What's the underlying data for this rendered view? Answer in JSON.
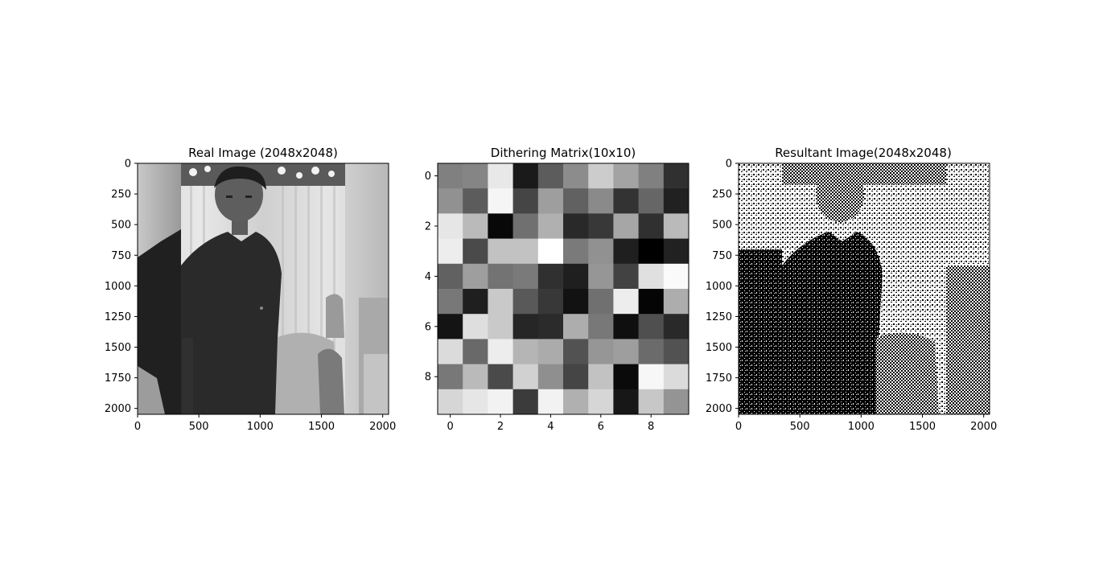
{
  "chart_data": [
    {
      "type": "heatmap",
      "title": "Real Image (2048x2048)",
      "colormap": "gray",
      "xlim": [
        0,
        2048
      ],
      "ylim": [
        2048,
        0
      ],
      "xticks": [
        0,
        500,
        1000,
        1500,
        2000
      ],
      "yticks": [
        0,
        250,
        500,
        750,
        1000,
        1250,
        1500,
        1750,
        2000
      ],
      "content": "grayscale photograph"
    },
    {
      "type": "heatmap",
      "title": "Dithering Matrix(10x10)",
      "colormap": "gray",
      "xlim": [
        -0.5,
        9.5
      ],
      "ylim": [
        9.5,
        -0.5
      ],
      "xticks": [
        0,
        2,
        4,
        6,
        8
      ],
      "yticks": [
        0,
        2,
        4,
        6,
        8
      ],
      "values": [
        [
          0.5,
          0.52,
          0.91,
          0.1,
          0.36,
          0.55,
          0.8,
          0.64,
          0.5,
          0.19
        ],
        [
          0.57,
          0.36,
          0.96,
          0.27,
          0.62,
          0.38,
          0.54,
          0.2,
          0.4,
          0.13
        ],
        [
          0.9,
          0.73,
          0.03,
          0.44,
          0.69,
          0.16,
          0.22,
          0.65,
          0.19,
          0.73
        ],
        [
          0.93,
          0.29,
          0.76,
          0.76,
          1.0,
          0.48,
          0.57,
          0.12,
          0.0,
          0.13
        ],
        [
          0.38,
          0.62,
          0.45,
          0.48,
          0.19,
          0.12,
          0.59,
          0.26,
          0.88,
          0.98
        ],
        [
          0.47,
          0.12,
          0.79,
          0.35,
          0.22,
          0.07,
          0.44,
          0.93,
          0.02,
          0.68
        ],
        [
          0.08,
          0.87,
          0.79,
          0.15,
          0.17,
          0.68,
          0.47,
          0.06,
          0.31,
          0.16
        ],
        [
          0.86,
          0.41,
          0.93,
          0.71,
          0.67,
          0.32,
          0.59,
          0.62,
          0.42,
          0.32
        ],
        [
          0.47,
          0.73,
          0.29,
          0.82,
          0.56,
          0.27,
          0.76,
          0.04,
          0.97,
          0.86
        ],
        [
          0.84,
          0.9,
          0.95,
          0.23,
          0.95,
          0.69,
          0.84,
          0.09,
          0.78,
          0.58
        ]
      ]
    },
    {
      "type": "heatmap",
      "title": "Resultant Image(2048x2048)",
      "colormap": "gray",
      "xlim": [
        0,
        2048
      ],
      "ylim": [
        2048,
        0
      ],
      "xticks": [
        0,
        500,
        1000,
        1500,
        2000
      ],
      "yticks": [
        0,
        250,
        500,
        750,
        1000,
        1250,
        1500,
        1750,
        2000
      ],
      "content": "binary dithered image"
    }
  ]
}
